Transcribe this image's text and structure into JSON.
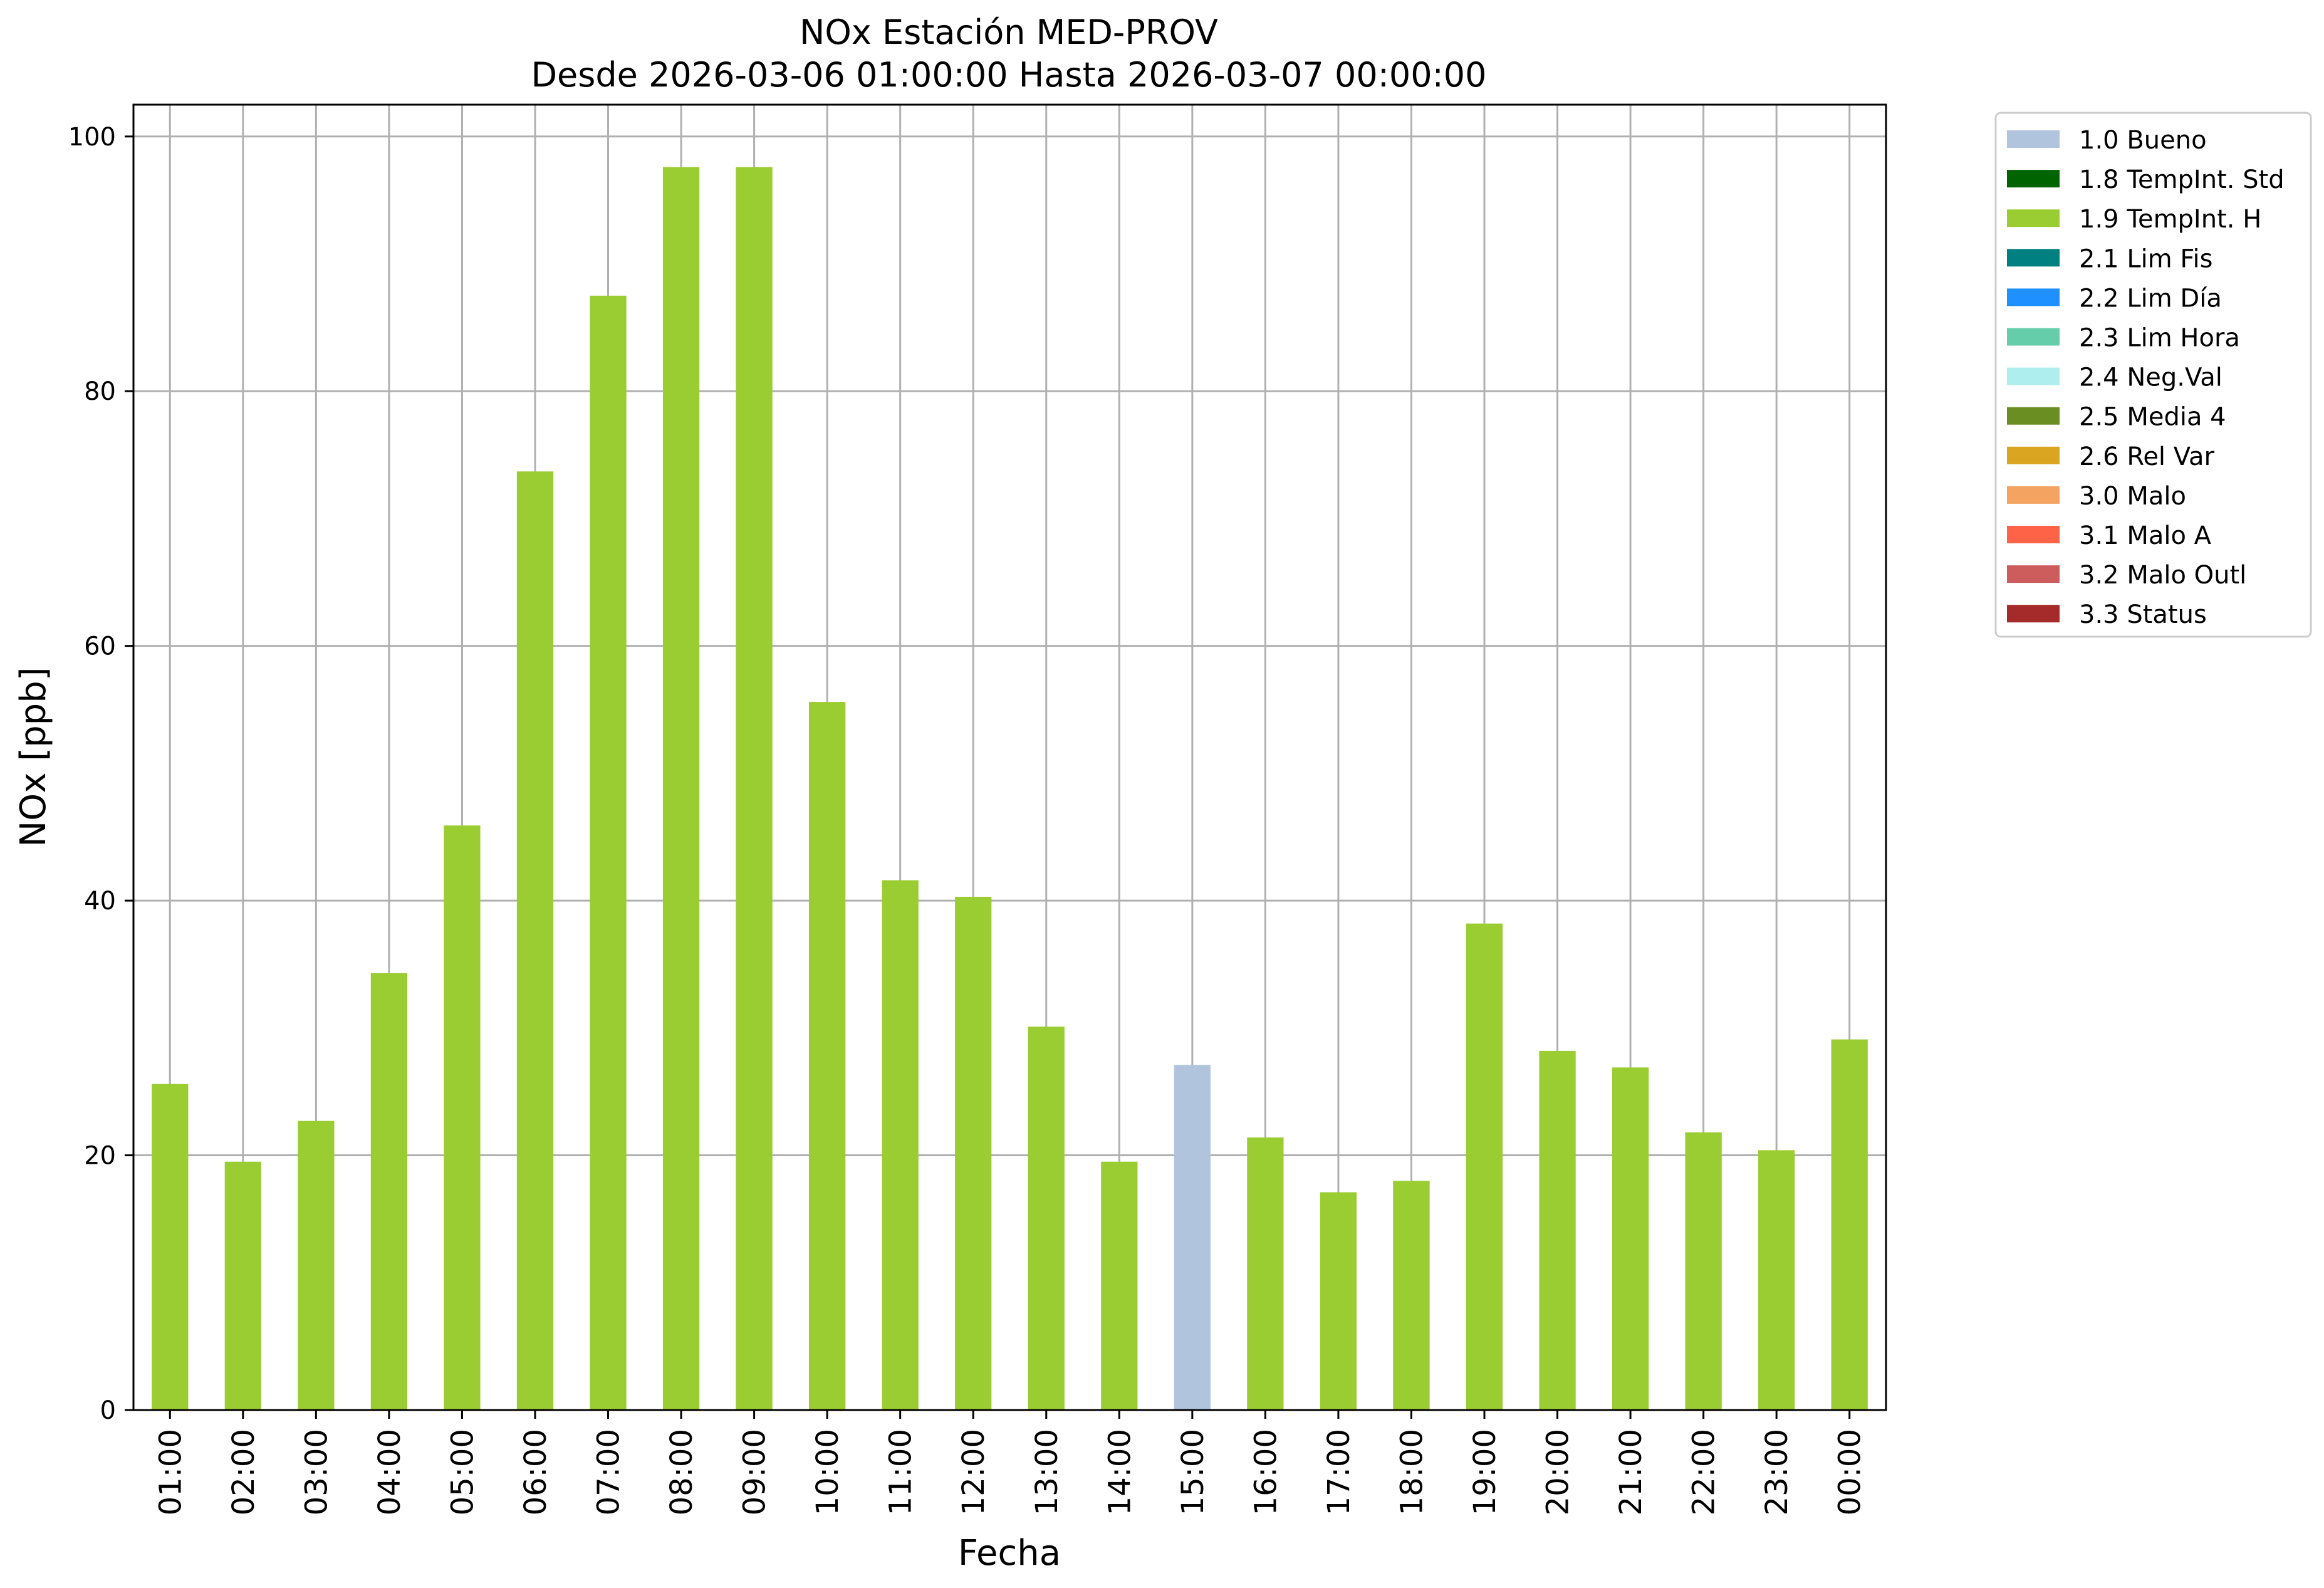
{
  "chart_data": {
    "type": "bar",
    "title": "NOx Estación MED-PROV",
    "subtitle": "Desde 2026-03-06 01:00:00 Hasta 2026-03-07 00:00:00",
    "xlabel": "Fecha",
    "ylabel": "NOx [ppb]",
    "ylim": [
      0,
      102.5
    ],
    "yticks": [
      0,
      20,
      40,
      60,
      80,
      100
    ],
    "grid": true,
    "legend_position": "outside-right",
    "categories": [
      "01:00",
      "02:00",
      "03:00",
      "04:00",
      "05:00",
      "06:00",
      "07:00",
      "08:00",
      "09:00",
      "10:00",
      "11:00",
      "12:00",
      "13:00",
      "14:00",
      "15:00",
      "16:00",
      "17:00",
      "18:00",
      "19:00",
      "20:00",
      "21:00",
      "22:00",
      "23:00",
      "00:00"
    ],
    "values": [
      25.6,
      19.5,
      22.7,
      34.3,
      45.9,
      73.7,
      87.5,
      97.6,
      97.6,
      55.6,
      41.6,
      40.3,
      30.1,
      19.5,
      27.1,
      21.4,
      17.1,
      18.0,
      38.2,
      28.2,
      26.9,
      21.8,
      20.4,
      29.1
    ],
    "flags": [
      "1.9 TempInt. H",
      "1.9 TempInt. H",
      "1.9 TempInt. H",
      "1.9 TempInt. H",
      "1.9 TempInt. H",
      "1.9 TempInt. H",
      "1.9 TempInt. H",
      "1.9 TempInt. H",
      "1.9 TempInt. H",
      "1.9 TempInt. H",
      "1.9 TempInt. H",
      "1.9 TempInt. H",
      "1.9 TempInt. H",
      "1.9 TempInt. H",
      "1.0 Bueno",
      "1.9 TempInt. H",
      "1.9 TempInt. H",
      "1.9 TempInt. H",
      "1.9 TempInt. H",
      "1.9 TempInt. H",
      "1.9 TempInt. H",
      "1.9 TempInt. H",
      "1.9 TempInt. H",
      "1.9 TempInt. H"
    ],
    "legend": [
      {
        "label": "1.0 Bueno",
        "color": "#b0c4de"
      },
      {
        "label": "1.8 TempInt. Std",
        "color": "#006400"
      },
      {
        "label": "1.9 TempInt. H",
        "color": "#9acd32"
      },
      {
        "label": "2.1 Lim Fis",
        "color": "#008080"
      },
      {
        "label": "2.2 Lim Día",
        "color": "#1e90ff"
      },
      {
        "label": "2.3 Lim Hora",
        "color": "#66cdaa"
      },
      {
        "label": "2.4 Neg.Val",
        "color": "#afeeee"
      },
      {
        "label": "2.5 Media 4",
        "color": "#6b8e23"
      },
      {
        "label": "2.6 Rel Var",
        "color": "#daa520"
      },
      {
        "label": "3.0 Malo",
        "color": "#f4a460"
      },
      {
        "label": "3.1 Malo A",
        "color": "#ff6347"
      },
      {
        "label": "3.2 Malo Outl",
        "color": "#cd5c5c"
      },
      {
        "label": "3.3 Status",
        "color": "#a52a2a"
      }
    ]
  }
}
